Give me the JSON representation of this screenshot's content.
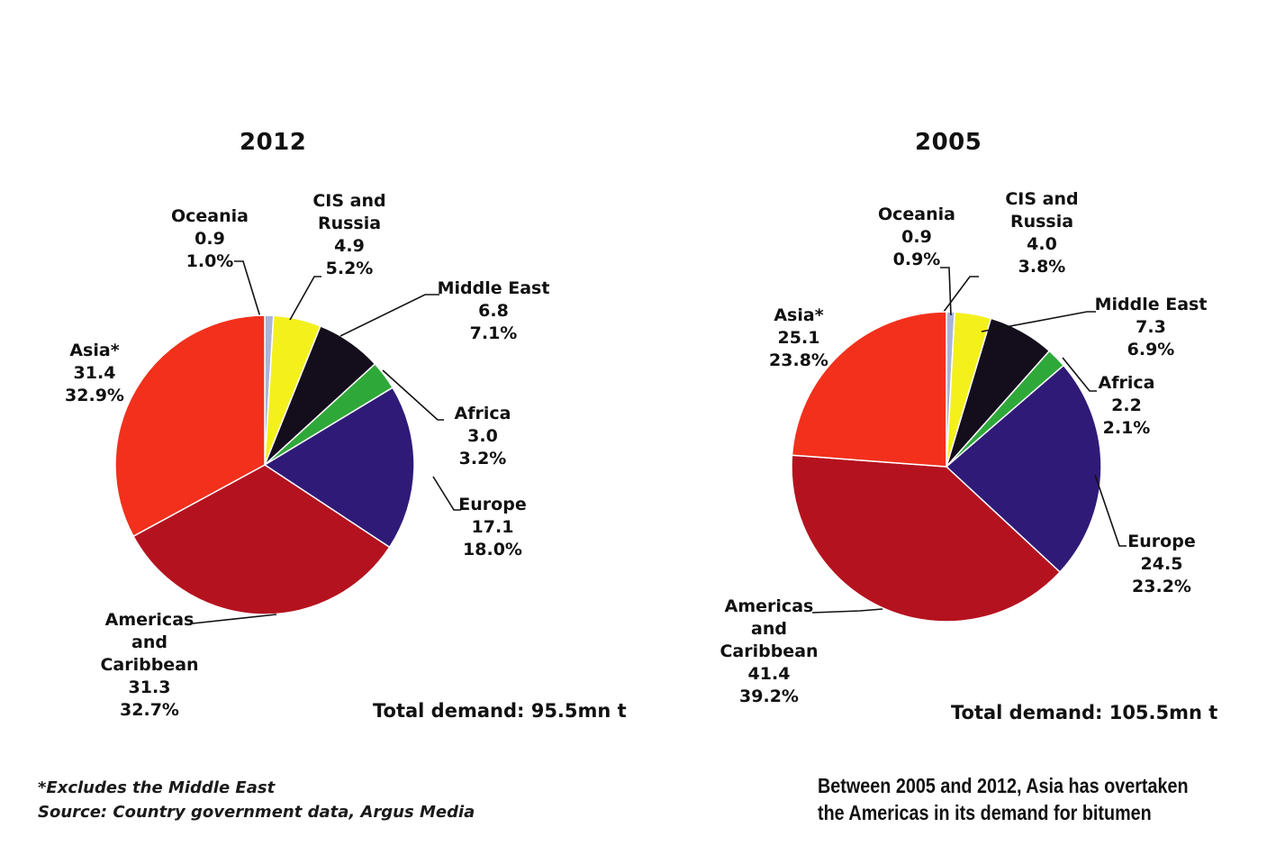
{
  "chart_data": [
    {
      "type": "pie",
      "title": "2012",
      "unit": "mn t",
      "total_label": "Total demand: 95.5mn t",
      "slices": [
        {
          "name": "Oceania",
          "label_lines": [
            "Oceania"
          ],
          "value": 0.9,
          "value_text": "0.9",
          "percent": 1.0,
          "percent_text": "1.0%",
          "color": "#a9b4d8"
        },
        {
          "name": "CIS and Russia",
          "label_lines": [
            "CIS and",
            "Russia"
          ],
          "value": 4.9,
          "value_text": "4.9",
          "percent": 5.2,
          "percent_text": "5.2%",
          "color": "#f4f01c"
        },
        {
          "name": "Middle East",
          "label_lines": [
            "Middle East"
          ],
          "value": 6.8,
          "value_text": "6.8",
          "percent": 7.1,
          "percent_text": "7.1%",
          "color": "#140d1c"
        },
        {
          "name": "Africa",
          "label_lines": [
            "Africa"
          ],
          "value": 3.0,
          "value_text": "3.0",
          "percent": 3.2,
          "percent_text": "3.2%",
          "color": "#2fa83a"
        },
        {
          "name": "Europe",
          "label_lines": [
            "Europe"
          ],
          "value": 17.1,
          "value_text": "17.1",
          "percent": 18.0,
          "percent_text": "18.0%",
          "color": "#2f1a78"
        },
        {
          "name": "Americas and Caribbean",
          "label_lines": [
            "Americas",
            "and",
            "Caribbean"
          ],
          "value": 31.3,
          "value_text": "31.3",
          "percent": 32.7,
          "percent_text": "32.7%",
          "color": "#b5121f"
        },
        {
          "name": "Asia*",
          "label_lines": [
            "Asia*"
          ],
          "value": 31.4,
          "value_text": "31.4",
          "percent": 32.9,
          "percent_text": "32.9%",
          "color": "#f2301c"
        }
      ]
    },
    {
      "type": "pie",
      "title": "2005",
      "unit": "mn t",
      "total_label": "Total demand: 105.5mn t",
      "slices": [
        {
          "name": "Oceania",
          "label_lines": [
            "Oceania"
          ],
          "value": 0.9,
          "value_text": "0.9",
          "percent": 0.9,
          "percent_text": "0.9%",
          "color": "#a9b4d8"
        },
        {
          "name": "CIS and Russia",
          "label_lines": [
            "CIS and",
            "Russia"
          ],
          "value": 4.0,
          "value_text": "4.0",
          "percent": 3.8,
          "percent_text": "3.8%",
          "color": "#f4f01c"
        },
        {
          "name": "Middle East",
          "label_lines": [
            "Middle East"
          ],
          "value": 7.3,
          "value_text": "7.3",
          "percent": 6.9,
          "percent_text": "6.9%",
          "color": "#140d1c"
        },
        {
          "name": "Africa",
          "label_lines": [
            "Africa"
          ],
          "value": 2.2,
          "value_text": "2.2",
          "percent": 2.1,
          "percent_text": "2.1%",
          "color": "#2fa83a"
        },
        {
          "name": "Europe",
          "label_lines": [
            "Europe"
          ],
          "value": 24.5,
          "value_text": "24.5",
          "percent": 23.2,
          "percent_text": "23.2%",
          "color": "#2f1a78"
        },
        {
          "name": "Americas and Caribbean",
          "label_lines": [
            "Americas",
            "and",
            "Caribbean"
          ],
          "value": 41.4,
          "value_text": "41.4",
          "percent": 39.2,
          "percent_text": "39.2%",
          "color": "#b5121f"
        },
        {
          "name": "Asia*",
          "label_lines": [
            "Asia*"
          ],
          "value": 25.1,
          "value_text": "25.1",
          "percent": 23.8,
          "percent_text": "23.8%",
          "color": "#f2301c"
        }
      ]
    }
  ],
  "footnote": {
    "line1": "*Excludes the Middle East",
    "line2": "Source: Country government data, Argus Media"
  },
  "caption": {
    "line1": "Between 2005 and 2012, Asia has overtaken",
    "line2": "the Americas in its demand for bitumen"
  }
}
